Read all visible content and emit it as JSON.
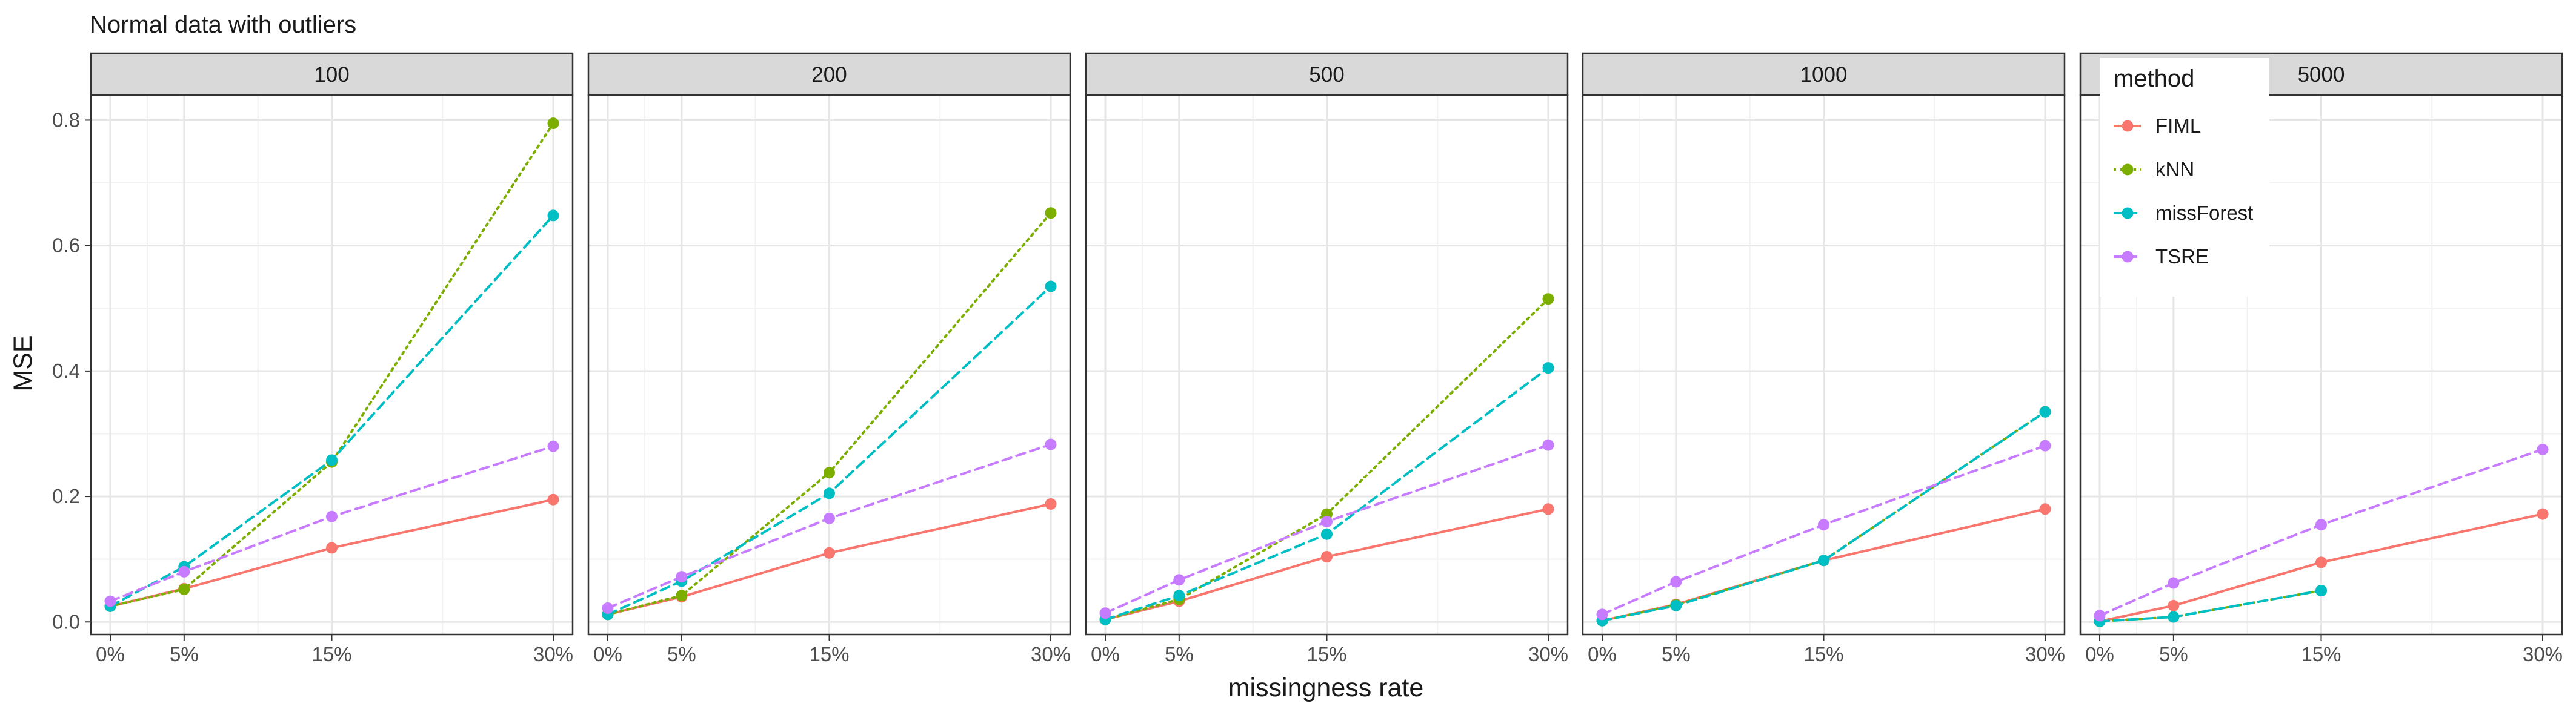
{
  "chart_data": {
    "type": "line",
    "title": "Normal data with outliers",
    "xlabel": "missingness rate",
    "ylabel": "MSE",
    "x": [
      0,
      5,
      15,
      30
    ],
    "x_tick_labels": [
      "0%",
      "5%",
      "15%",
      "30%"
    ],
    "ylim": [
      -0.02,
      0.84
    ],
    "y_ticks": [
      0.0,
      0.2,
      0.4,
      0.6,
      0.8
    ],
    "y_tick_labels": [
      "0.0",
      "0.2",
      "0.4",
      "0.6",
      "0.8"
    ],
    "grid": true,
    "legend": {
      "title": "method",
      "placement": "top-left inside last panel",
      "entries": [
        "FIML",
        "kNN",
        "missForest",
        "TSRE"
      ]
    },
    "series_styles": [
      {
        "name": "FIML",
        "color": "#F8766D",
        "dash": "solid"
      },
      {
        "name": "kNN",
        "color": "#7CAE00",
        "dash": "dotted"
      },
      {
        "name": "missForest",
        "color": "#00BFC4",
        "dash": "dashed"
      },
      {
        "name": "TSRE",
        "color": "#C77CFF",
        "dash": "dashed"
      }
    ],
    "panels": [
      {
        "label": "100",
        "series": [
          {
            "name": "FIML",
            "values": [
              0.025,
              0.053,
              0.118,
              0.195
            ]
          },
          {
            "name": "kNN",
            "values": [
              0.025,
              0.052,
              0.255,
              0.795
            ]
          },
          {
            "name": "missForest",
            "values": [
              0.025,
              0.088,
              0.258,
              0.648
            ]
          },
          {
            "name": "TSRE",
            "values": [
              0.033,
              0.08,
              0.168,
              0.28
            ]
          }
        ]
      },
      {
        "label": "200",
        "series": [
          {
            "name": "FIML",
            "values": [
              0.012,
              0.04,
              0.11,
              0.188
            ]
          },
          {
            "name": "kNN",
            "values": [
              0.012,
              0.042,
              0.238,
              0.652
            ]
          },
          {
            "name": "missForest",
            "values": [
              0.012,
              0.065,
              0.205,
              0.535
            ]
          },
          {
            "name": "TSRE",
            "values": [
              0.022,
              0.072,
              0.165,
              0.283
            ]
          }
        ]
      },
      {
        "label": "500",
        "series": [
          {
            "name": "FIML",
            "values": [
              0.004,
              0.033,
              0.104,
              0.18
            ]
          },
          {
            "name": "kNN",
            "values": [
              0.004,
              0.036,
              0.172,
              0.515
            ]
          },
          {
            "name": "missForest",
            "values": [
              0.004,
              0.042,
              0.14,
              0.405
            ]
          },
          {
            "name": "TSRE",
            "values": [
              0.014,
              0.067,
              0.16,
              0.282
            ]
          }
        ]
      },
      {
        "label": "1000",
        "series": [
          {
            "name": "FIML",
            "values": [
              0.002,
              0.028,
              0.098,
              0.18
            ]
          },
          {
            "name": "kNN",
            "values": [
              0.002,
              0.027,
              0.098,
              0.335
            ]
          },
          {
            "name": "missForest",
            "values": [
              0.002,
              0.026,
              0.098,
              0.335
            ]
          },
          {
            "name": "TSRE",
            "values": [
              0.012,
              0.064,
              0.155,
              0.281
            ]
          }
        ]
      },
      {
        "label": "5000",
        "series": [
          {
            "name": "FIML",
            "values": [
              0.001,
              0.026,
              0.095,
              0.172
            ]
          },
          {
            "name": "kNN",
            "values": [
              0.001,
              0.008,
              0.05,
              null
            ]
          },
          {
            "name": "missForest",
            "values": [
              0.001,
              0.008,
              0.05,
              null
            ]
          },
          {
            "name": "TSRE",
            "values": [
              0.01,
              0.062,
              0.155,
              0.275
            ]
          }
        ]
      }
    ]
  }
}
